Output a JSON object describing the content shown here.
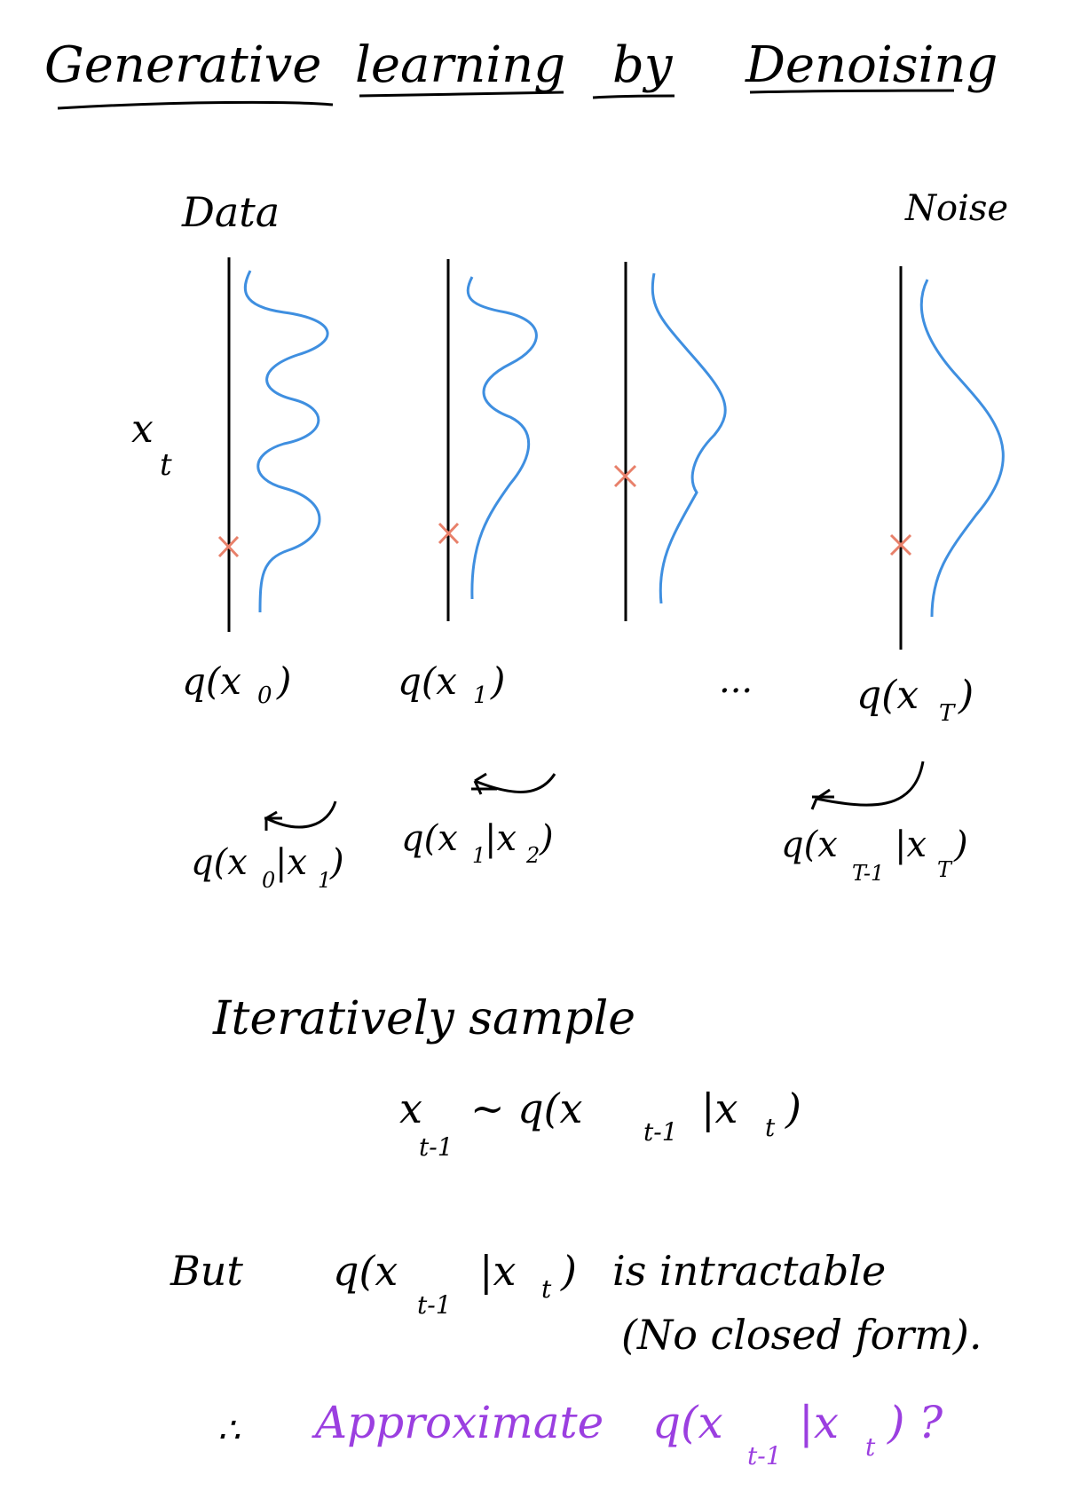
{
  "title": {
    "words": [
      "Generative",
      "learning",
      "by",
      "Denoising"
    ]
  },
  "header_left": "Data",
  "header_right": "Noise",
  "axis_label": {
    "main": "x",
    "sub": "t"
  },
  "distributions": [
    {
      "label": "q(x",
      "sub": "0",
      "close": ")"
    },
    {
      "label": "q(x",
      "sub": "1",
      "close": ")"
    },
    {
      "label": "q(x",
      "sub": "T",
      "close": ")"
    }
  ],
  "ellipsis": "...",
  "conditionals": [
    {
      "pre": "q(x",
      "sub1": "0",
      "mid": "|x",
      "sub2": "1",
      "post": ")"
    },
    {
      "pre": "q(x",
      "sub1": "1",
      "mid": "|x",
      "sub2": "2",
      "post": ")"
    },
    {
      "pre": "q(x",
      "sub1": "T-1",
      "mid": "|x",
      "sub2": "T",
      "post": ")"
    }
  ],
  "iterative": {
    "heading": "Iteratively sample",
    "formula_pre": "x",
    "formula_sub1": "t-1",
    "formula_mid": " ~ q(x",
    "formula_sub2": "t-1",
    "formula_mid2": "|x",
    "formula_sub3": "t",
    "formula_post": ")"
  },
  "but_line": {
    "word": "But",
    "formula_pre": "q(x",
    "formula_sub1": "t-1",
    "formula_mid": "|x",
    "formula_sub2": "t",
    "formula_post": ")",
    "tail": "is intractable",
    "paren_note": "(No closed form)."
  },
  "conclusion": {
    "therefore": "∴",
    "text": "Approximate",
    "formula_pre": "q(x",
    "formula_sub1": "t-1",
    "formula_mid": "|x",
    "formula_sub2": "t",
    "formula_post": ") ?",
    "color": "#9b3fe0"
  },
  "colors": {
    "curve": "#3f8fe0",
    "marker": "#e8806a",
    "ink": "#000000"
  }
}
